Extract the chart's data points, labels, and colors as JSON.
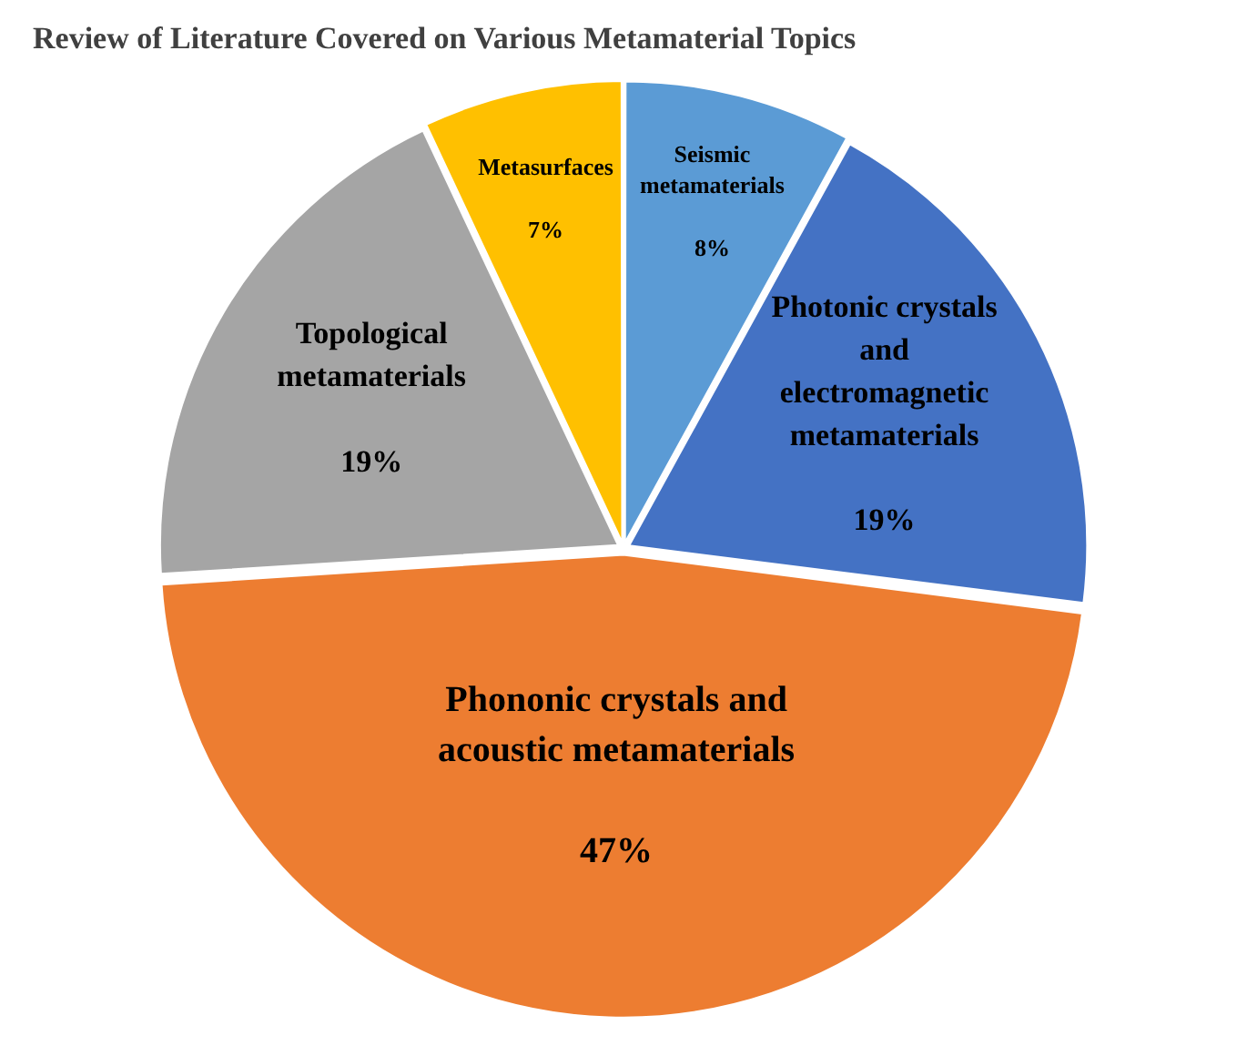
{
  "chart_data": {
    "type": "pie",
    "title": "Review of Literature Covered on Various Metamaterial Topics",
    "categories": [
      "Seismic metamaterials",
      "Photonic crystals and electromagnetic metamaterials",
      "Phononic crystals and acoustic metamaterials",
      "Topological metamaterials",
      "Metasurfaces"
    ],
    "values": [
      8,
      19,
      47,
      19,
      7
    ],
    "value_labels": [
      "8%",
      "19%",
      "47%",
      "19%",
      "7%"
    ],
    "colors": [
      "#5b9bd5",
      "#4472c4",
      "#ed7d31",
      "#a5a5a5",
      "#ffc000"
    ],
    "legend": false
  }
}
